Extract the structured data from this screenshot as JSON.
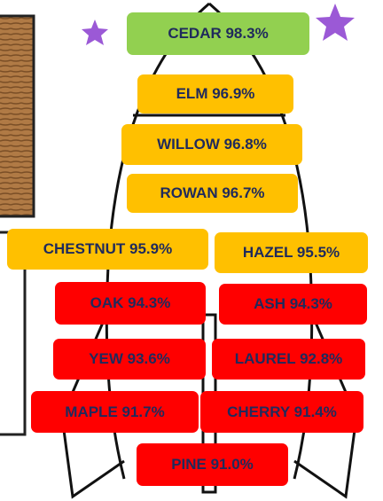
{
  "items": [
    {
      "label": "CEDAR 98.3%",
      "color": "#92d050"
    },
    {
      "label": "ELM 96.9%",
      "color": "#ffc000"
    },
    {
      "label": "WILLOW 96.8%",
      "color": "#ffc000"
    },
    {
      "label": "ROWAN 96.7%",
      "color": "#ffc000"
    },
    {
      "label": "CHESTNUT 95.9%",
      "color": "#ffc000"
    },
    {
      "label": "HAZEL 95.5%",
      "color": "#ffc000"
    },
    {
      "label": "OAK 94.3%",
      "color": "#ff0000"
    },
    {
      "label": "ASH 94.3%",
      "color": "#ff0000"
    },
    {
      "label": "YEW 93.6%",
      "color": "#ff0000"
    },
    {
      "label": "LAUREL 92.8%",
      "color": "#ff0000"
    },
    {
      "label": "MAPLE 91.7%",
      "color": "#ff0000"
    },
    {
      "label": "CHERRY 91.4%",
      "color": "#ff0000"
    },
    {
      "label": "PINE 91.0%",
      "color": "#ff0000"
    }
  ]
}
